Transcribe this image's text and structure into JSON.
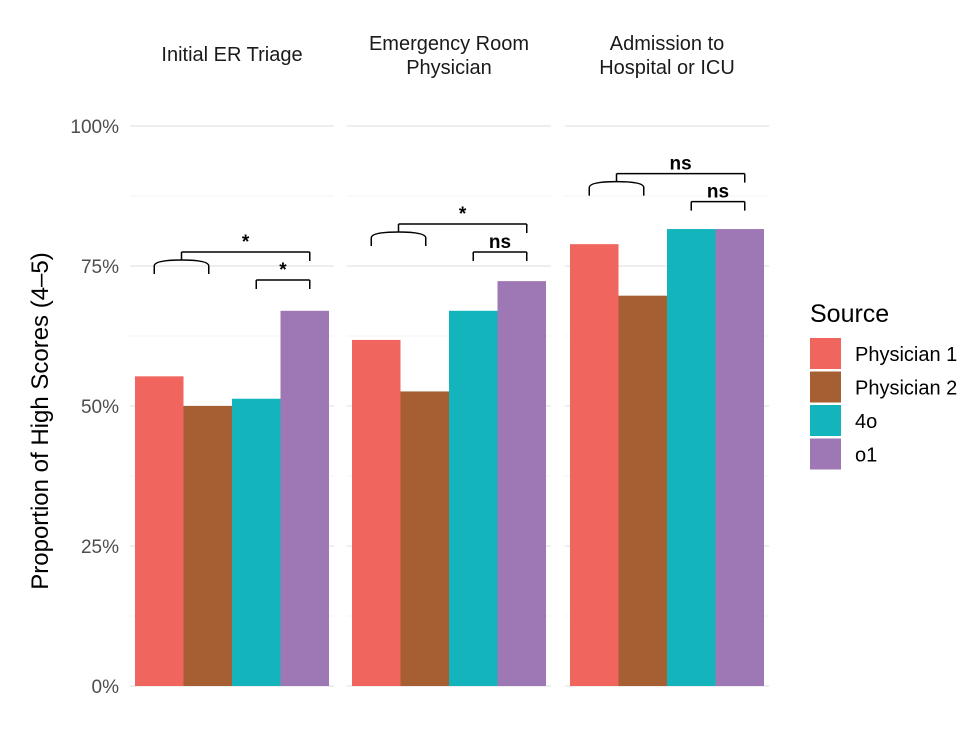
{
  "chart_data": {
    "type": "bar",
    "ylabel": "Proportion of High Scores (4–5)",
    "ylim": [
      0,
      100
    ],
    "y_ticks": [
      {
        "value": 0,
        "label": "0%"
      },
      {
        "value": 25,
        "label": "25%"
      },
      {
        "value": 50,
        "label": "50%"
      },
      {
        "value": 75,
        "label": "75%"
      },
      {
        "value": 100,
        "label": "100%"
      }
    ],
    "grid": true,
    "legend": {
      "title": "Source",
      "position": "right",
      "entries": [
        {
          "name": "Physician 1",
          "color": "#F0665E"
        },
        {
          "name": "Physician 2",
          "color": "#A65F33"
        },
        {
          "name": "4o",
          "color": "#14B4BC"
        },
        {
          "name": "o1",
          "color": "#9E78B4"
        }
      ]
    },
    "facets": [
      {
        "title_lines": [
          "Initial ER Triage"
        ],
        "values": [
          55.3,
          50.0,
          51.3,
          67.0
        ],
        "comparisons": [
          {
            "from": "group",
            "to": 3,
            "label": "*",
            "y": 77.5
          },
          {
            "from": 2,
            "to": 3,
            "label": "*",
            "y": 72.5
          }
        ]
      },
      {
        "title_lines": [
          "Emergency Room",
          "Physician"
        ],
        "values": [
          61.8,
          52.6,
          67.0,
          72.3
        ],
        "comparisons": [
          {
            "from": "group",
            "to": 3,
            "label": "*",
            "y": 82.5
          },
          {
            "from": 2,
            "to": 3,
            "label": "ns",
            "y": 77.5
          }
        ]
      },
      {
        "title_lines": [
          "Admission to",
          "Hospital or ICU"
        ],
        "values": [
          78.9,
          69.7,
          81.6,
          81.6
        ],
        "comparisons": [
          {
            "from": "group",
            "to": 3,
            "label": "ns",
            "y": 91.5
          },
          {
            "from": 2,
            "to": 3,
            "label": "ns",
            "y": 86.5
          }
        ]
      }
    ]
  }
}
